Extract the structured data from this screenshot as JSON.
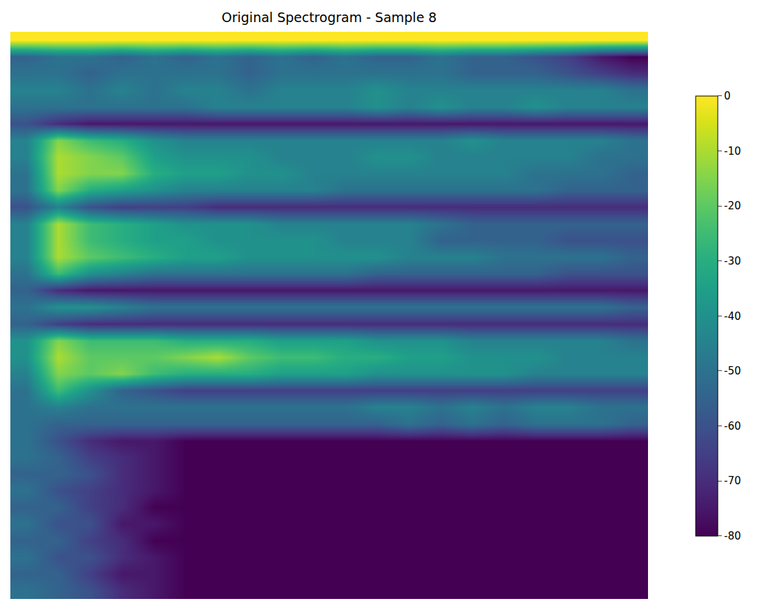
{
  "chart_data": {
    "type": "heatmap",
    "title": "Original Spectrogram - Sample 8",
    "color": "Viridis",
    "tick_labels": false,
    "colorbar": {
      "range": [
        -80,
        0
      ],
      "ticks": [
        0,
        -10,
        -20,
        -30,
        -40,
        -50,
        -60,
        -70,
        -80
      ]
    },
    "cells": [
      [
        0,
        0,
        0,
        0,
        0,
        0,
        0,
        0,
        0,
        0,
        0,
        0,
        0,
        0,
        0,
        0,
        0,
        0,
        0,
        0
      ],
      [
        -55,
        -50,
        -50,
        -55,
        -50,
        -55,
        -50,
        -55,
        -50,
        -55,
        -50,
        -55,
        -55,
        -50,
        -55,
        -55,
        -60,
        -65,
        -75,
        -80
      ],
      [
        -50,
        -50,
        -55,
        -50,
        -50,
        -50,
        -50,
        -55,
        -50,
        -50,
        -50,
        -50,
        -50,
        -50,
        -55,
        -55,
        -55,
        -60,
        -65,
        -70
      ],
      [
        -45,
        -45,
        -50,
        -45,
        -50,
        -45,
        -45,
        -50,
        -45,
        -45,
        -45,
        -40,
        -45,
        -45,
        -45,
        -45,
        -45,
        -45,
        -45,
        -50
      ],
      [
        -50,
        -50,
        -50,
        -50,
        -50,
        -50,
        -45,
        -45,
        -45,
        -45,
        -45,
        -40,
        -45,
        -40,
        -45,
        -45,
        -40,
        -45,
        -45,
        -45
      ],
      [
        -60,
        -70,
        -75,
        -75,
        -75,
        -75,
        -75,
        -75,
        -75,
        -75,
        -75,
        -75,
        -75,
        -75,
        -75,
        -75,
        -75,
        -75,
        -75,
        -75
      ],
      [
        -45,
        -15,
        -25,
        -30,
        -40,
        -45,
        -45,
        -45,
        -45,
        -45,
        -45,
        -45,
        -45,
        -45,
        -40,
        -45,
        -45,
        -45,
        -45,
        -50
      ],
      [
        -45,
        -10,
        -15,
        -20,
        -35,
        -40,
        -40,
        -40,
        -45,
        -45,
        -45,
        -40,
        -40,
        -45,
        -45,
        -45,
        -45,
        -45,
        -50,
        -50
      ],
      [
        -50,
        -10,
        -15,
        -15,
        -30,
        -35,
        -35,
        -40,
        -40,
        -45,
        -45,
        -45,
        -45,
        -45,
        -45,
        -45,
        -50,
        -50,
        -50,
        -55
      ],
      [
        -50,
        -15,
        -30,
        -35,
        -40,
        -45,
        -45,
        -45,
        -45,
        -45,
        -50,
        -50,
        -50,
        -50,
        -50,
        -50,
        -50,
        -55,
        -55,
        -55
      ],
      [
        -60,
        -45,
        -60,
        -65,
        -65,
        -65,
        -70,
        -70,
        -70,
        -70,
        -70,
        -70,
        -70,
        -70,
        -70,
        -70,
        -70,
        -70,
        -70,
        -70
      ],
      [
        -45,
        -10,
        -25,
        -30,
        -35,
        -40,
        -40,
        -40,
        -45,
        -45,
        -45,
        -45,
        -45,
        -50,
        -55,
        -55,
        -55,
        -55,
        -55,
        -55
      ],
      [
        -45,
        -10,
        -25,
        -30,
        -35,
        -35,
        -40,
        -40,
        -40,
        -40,
        -45,
        -45,
        -45,
        -55,
        -55,
        -55,
        -55,
        -60,
        -60,
        -60
      ],
      [
        -45,
        -10,
        -20,
        -25,
        -30,
        -35,
        -35,
        -40,
        -40,
        -40,
        -40,
        -40,
        -45,
        -45,
        -45,
        -50,
        -50,
        -50,
        -50,
        -55
      ],
      [
        -50,
        -25,
        -40,
        -45,
        -50,
        -50,
        -50,
        -50,
        -50,
        -50,
        -50,
        -55,
        -55,
        -55,
        -55,
        -55,
        -55,
        -60,
        -60,
        -60
      ],
      [
        -55,
        -70,
        -75,
        -75,
        -75,
        -75,
        -75,
        -75,
        -75,
        -75,
        -75,
        -75,
        -75,
        -75,
        -75,
        -75,
        -75,
        -75,
        -75,
        -75
      ],
      [
        -50,
        -40,
        -40,
        -45,
        -50,
        -50,
        -50,
        -50,
        -50,
        -50,
        -50,
        -50,
        -50,
        -50,
        -50,
        -50,
        -50,
        -50,
        -50,
        -55
      ],
      [
        -55,
        -65,
        -70,
        -70,
        -70,
        -70,
        -70,
        -70,
        -70,
        -70,
        -70,
        -70,
        -70,
        -70,
        -70,
        -70,
        -70,
        -70,
        -70,
        -70
      ],
      [
        -40,
        -15,
        -25,
        -25,
        -25,
        -30,
        -30,
        -30,
        -35,
        -35,
        -35,
        -40,
        -40,
        -40,
        -45,
        -45,
        -45,
        -45,
        -45,
        -50
      ],
      [
        -40,
        -10,
        -20,
        -20,
        -20,
        -15,
        -10,
        -20,
        -25,
        -25,
        -30,
        -30,
        -35,
        -35,
        -40,
        -40,
        -40,
        -45,
        -45,
        -45
      ],
      [
        -45,
        -15,
        -20,
        -15,
        -25,
        -30,
        -30,
        -30,
        -35,
        -35,
        -35,
        -40,
        -40,
        -40,
        -40,
        -40,
        -45,
        -45,
        -45,
        -45
      ],
      [
        -50,
        -25,
        -40,
        -55,
        -60,
        -65,
        -65,
        -65,
        -65,
        -65,
        -65,
        -65,
        -65,
        -65,
        -65,
        -65,
        -65,
        -65,
        -65,
        -65
      ],
      [
        -50,
        -45,
        -50,
        -50,
        -50,
        -50,
        -50,
        -50,
        -50,
        -50,
        -50,
        -45,
        -45,
        -50,
        -45,
        -50,
        -45,
        -45,
        -50,
        -50
      ],
      [
        -50,
        -55,
        -55,
        -55,
        -55,
        -55,
        -55,
        -55,
        -55,
        -55,
        -55,
        -55,
        -50,
        -55,
        -50,
        -55,
        -50,
        -50,
        -50,
        -55
      ],
      [
        -50,
        -60,
        -70,
        -75,
        -75,
        -80,
        -80,
        -80,
        -80,
        -80,
        -80,
        -80,
        -80,
        -80,
        -80,
        -80,
        -80,
        -80,
        -80,
        -80
      ],
      [
        -50,
        -55,
        -65,
        -70,
        -75,
        -80,
        -80,
        -80,
        -80,
        -80,
        -80,
        -80,
        -80,
        -80,
        -80,
        -80,
        -80,
        -80,
        -80,
        -80
      ],
      [
        -55,
        -55,
        -60,
        -70,
        -75,
        -80,
        -80,
        -80,
        -80,
        -80,
        -80,
        -80,
        -80,
        -80,
        -80,
        -80,
        -80,
        -80,
        -80,
        -80
      ],
      [
        -50,
        -60,
        -65,
        -70,
        -75,
        -80,
        -80,
        -80,
        -80,
        -80,
        -80,
        -80,
        -80,
        -80,
        -80,
        -80,
        -80,
        -80,
        -80,
        -80
      ],
      [
        -55,
        -55,
        -65,
        -70,
        -80,
        -80,
        -80,
        -80,
        -80,
        -80,
        -80,
        -80,
        -80,
        -80,
        -80,
        -80,
        -80,
        -80,
        -80,
        -80
      ],
      [
        -50,
        -60,
        -60,
        -75,
        -75,
        -80,
        -80,
        -80,
        -80,
        -80,
        -80,
        -80,
        -80,
        -80,
        -80,
        -80,
        -80,
        -80,
        -80,
        -80
      ],
      [
        -55,
        -55,
        -65,
        -70,
        -80,
        -80,
        -80,
        -80,
        -80,
        -80,
        -80,
        -80,
        -80,
        -80,
        -80,
        -80,
        -80,
        -80,
        -80,
        -80
      ],
      [
        -50,
        -60,
        -60,
        -70,
        -75,
        -80,
        -80,
        -80,
        -80,
        -80,
        -80,
        -80,
        -80,
        -80,
        -80,
        -80,
        -80,
        -80,
        -80,
        -80
      ],
      [
        -55,
        -55,
        -65,
        -75,
        -75,
        -80,
        -80,
        -80,
        -80,
        -80,
        -80,
        -80,
        -80,
        -80,
        -80,
        -80,
        -80,
        -80,
        -80,
        -80
      ],
      [
        -50,
        -55,
        -60,
        -70,
        -75,
        -80,
        -80,
        -80,
        -80,
        -80,
        -80,
        -80,
        -80,
        -80,
        -80,
        -80,
        -80,
        -80,
        -80,
        -80
      ]
    ]
  }
}
